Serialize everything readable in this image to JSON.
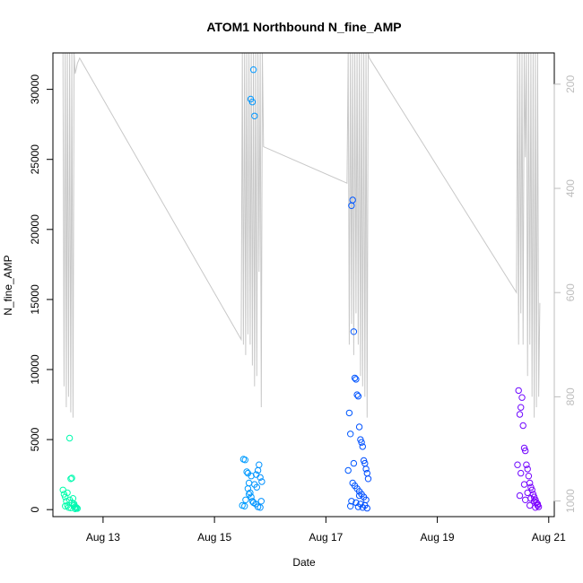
{
  "chart_data": {
    "type": "scatter",
    "title": "ATOM1 Northbound N_fine_AMP",
    "xlabel": "Date",
    "ylabel": "N_fine_AMP",
    "xlim": [
      12.1,
      21.1
    ],
    "ylim": [
      -500,
      32600
    ],
    "x_ticks": [
      13,
      15,
      17,
      19,
      21
    ],
    "x_tick_labels": [
      "Aug 13",
      "Aug 15",
      "Aug 17",
      "Aug 19",
      "Aug 21"
    ],
    "y_ticks": [
      0,
      5000,
      10000,
      15000,
      20000,
      25000,
      30000
    ],
    "y_tick_labels": [
      "0",
      "5000",
      "10000",
      "15000",
      "20000",
      "25000",
      "30000"
    ],
    "y2_lim": [
      1030,
      140
    ],
    "y2_ticks": [
      200,
      400,
      600,
      800,
      1000
    ],
    "y2_tick_labels": [
      "200",
      "400",
      "600",
      "800",
      "1000"
    ],
    "grid": false,
    "legend": "none",
    "colors": {
      "line": "#c8c8c8",
      "axis": "#000000",
      "right_axis": "#bdbdbd",
      "color_start": "#00ffaa",
      "color_mid": "#00aaff",
      "color_late": "#0044ff",
      "color_end": "#7f00ff"
    },
    "line_series": {
      "x": [
        12.28,
        12.3,
        12.32,
        12.34,
        12.36,
        12.38,
        12.4,
        12.42,
        12.44,
        12.46,
        12.48,
        12.5,
        12.52,
        12.54,
        12.56,
        12.58,
        15.48,
        15.5,
        15.52,
        15.54,
        15.56,
        15.58,
        15.6,
        15.62,
        15.64,
        15.66,
        15.68,
        15.7,
        15.72,
        15.74,
        15.76,
        15.78,
        15.8,
        15.82,
        15.84,
        15.86,
        15.88,
        17.38,
        17.4,
        17.42,
        17.44,
        17.46,
        17.48,
        17.5,
        17.52,
        17.54,
        17.56,
        17.58,
        17.6,
        17.62,
        17.64,
        17.66,
        17.68,
        17.7,
        17.72,
        17.74,
        17.76,
        17.78,
        20.42,
        20.44,
        20.46,
        20.48,
        20.5,
        20.52,
        20.54,
        20.56,
        20.58,
        20.6,
        20.62,
        20.64,
        20.66,
        20.68,
        20.7,
        20.72,
        20.74,
        20.76,
        20.78,
        20.8,
        20.82,
        20.84
      ],
      "y": [
        140,
        780,
        140,
        820,
        140,
        800,
        140,
        830,
        140,
        840,
        140,
        180,
        170,
        160,
        155,
        150,
        690,
        140,
        700,
        140,
        720,
        140,
        680,
        140,
        700,
        140,
        740,
        140,
        780,
        140,
        760,
        140,
        560,
        140,
        820,
        140,
        320,
        390,
        140,
        700,
        140,
        660,
        140,
        720,
        140,
        640,
        140,
        700,
        140,
        760,
        140,
        780,
        140,
        800,
        140,
        840,
        140,
        150,
        600,
        140,
        700,
        140,
        640,
        140,
        700,
        140,
        340,
        140,
        760,
        140,
        700,
        140,
        800,
        140,
        840,
        140,
        820,
        140,
        800,
        620
      ]
    },
    "scatter_series": [
      {
        "x": [
          12.28,
          12.3,
          12.32,
          12.34,
          12.36,
          12.38,
          12.4,
          12.42,
          12.44,
          12.46,
          12.48,
          12.5,
          12.52,
          12.54,
          12.36,
          12.4,
          12.44,
          12.48,
          12.52,
          12.32,
          12.42,
          12.5
        ],
        "y": [
          1400,
          1100,
          900,
          600,
          300,
          150,
          5100,
          2200,
          2250,
          800,
          400,
          200,
          100,
          80,
          1200,
          700,
          500,
          300,
          150,
          250,
          120,
          60
        ]
      },
      {
        "x": [
          15.5,
          15.52,
          15.55,
          15.58,
          15.6,
          15.62,
          15.65,
          15.68,
          15.7,
          15.72,
          15.75,
          15.78,
          15.8,
          15.82,
          15.85,
          15.6,
          15.64,
          15.66,
          15.68,
          15.7,
          15.74,
          15.78,
          15.82,
          15.56,
          15.62,
          15.72,
          15.76,
          15.84,
          15.66,
          15.54
        ],
        "y": [
          300,
          3600,
          3550,
          2700,
          2600,
          1900,
          29300,
          29100,
          31400,
          28100,
          2500,
          2800,
          3200,
          2300,
          2000,
          1500,
          1200,
          900,
          600,
          500,
          400,
          200,
          150,
          700,
          1100,
          1800,
          1600,
          600,
          2400,
          250
        ]
      },
      {
        "x": [
          17.4,
          17.42,
          17.44,
          17.46,
          17.48,
          17.5,
          17.52,
          17.54,
          17.56,
          17.58,
          17.6,
          17.62,
          17.64,
          17.66,
          17.68,
          17.7,
          17.72,
          17.74,
          17.76,
          17.48,
          17.52,
          17.56,
          17.6,
          17.64,
          17.68,
          17.72,
          17.46,
          17.54,
          17.62,
          17.7,
          17.44,
          17.58,
          17.66,
          17.74,
          17.5,
          17.6
        ],
        "y": [
          2800,
          6900,
          5400,
          21700,
          22100,
          12700,
          9400,
          9300,
          8200,
          8100,
          5900,
          5000,
          4800,
          4500,
          3500,
          3300,
          2900,
          2600,
          2200,
          1900,
          1700,
          1500,
          1300,
          1100,
          900,
          700,
          600,
          500,
          400,
          300,
          250,
          200,
          150,
          100,
          3300,
          1000
        ]
      },
      {
        "x": [
          20.44,
          20.46,
          20.48,
          20.5,
          20.52,
          20.54,
          20.56,
          20.58,
          20.6,
          20.62,
          20.64,
          20.66,
          20.68,
          20.7,
          20.72,
          20.74,
          20.76,
          20.78,
          20.8,
          20.82,
          20.5,
          20.56,
          20.62,
          20.68,
          20.74,
          20.8,
          20.48,
          20.58,
          20.66,
          20.76
        ],
        "y": [
          3200,
          8500,
          6800,
          7300,
          8000,
          6000,
          4400,
          4200,
          3200,
          2900,
          2400,
          1900,
          1600,
          1400,
          1100,
          900,
          700,
          500,
          300,
          200,
          2600,
          1800,
          1200,
          800,
          600,
          400,
          1000,
          700,
          300,
          150
        ]
      }
    ]
  }
}
